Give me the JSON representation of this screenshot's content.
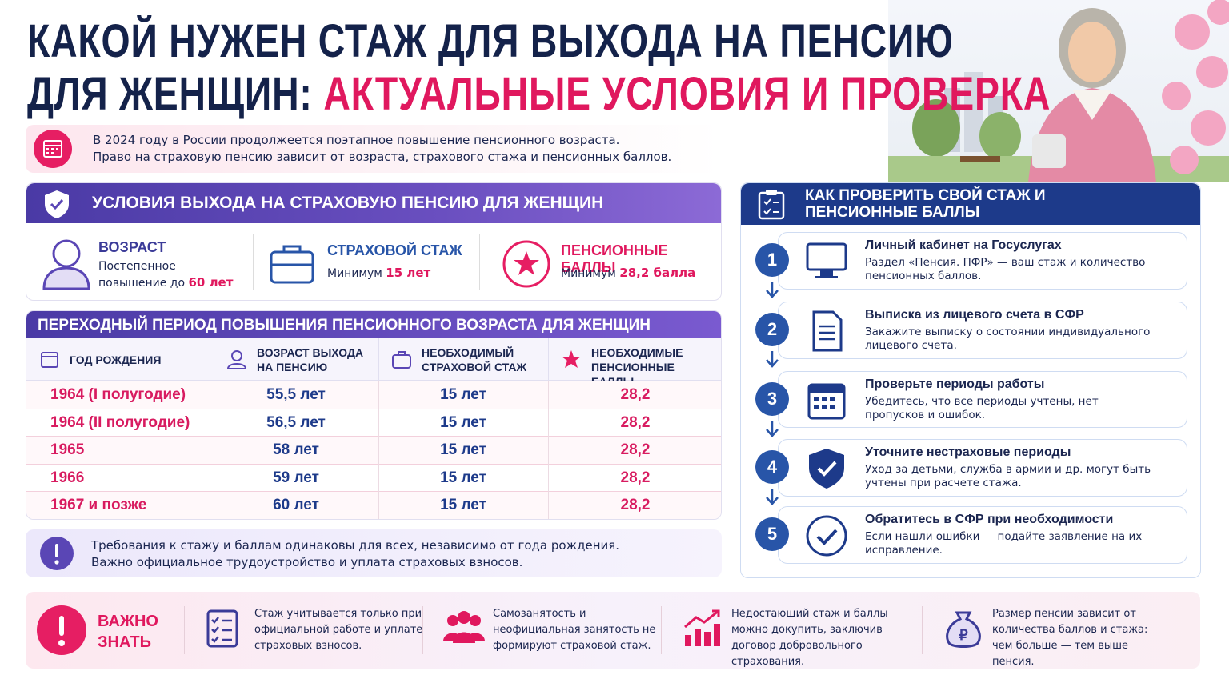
{
  "header": {
    "title_line1": "КАКОЙ НУЖЕН СТАЖ ДЛЯ ВЫХОДА НА ПЕНСИЮ",
    "title_line2_dark": "ДЛЯ ЖЕНЩИН:",
    "title_line2_accent": "АКТУАЛЬНЫЕ УСЛОВИЯ И ПРОВЕРКА"
  },
  "intro": [
    "В 2024 году в России продолжеется поэтапное повышение пенсионного возраста.",
    "Право на страховую пенсию зависит от возраста, страхового стажа и пенсионных баллов."
  ],
  "conditions": {
    "title": "УСЛОВИЯ ВЫХОДА НА СТРАХОВУЮ ПЕНСИЮ ДЛЯ ЖЕНЩИН",
    "items": [
      {
        "label": "ВОЗРАСТ",
        "text": "Постепенное повышение до",
        "accent": "60 лет"
      },
      {
        "label": "СТРАХОВОЙ СТАЖ",
        "text": "Минимум",
        "accent": "15 лет"
      },
      {
        "label": "ПЕНСИОННЫЕ БАЛЛЫ",
        "text": "Минимум",
        "accent": "28,2 балла"
      }
    ]
  },
  "table": {
    "title": "ПЕРЕХОДНЫЙ ПЕРИОД ПОВЫШЕНИЯ ПЕНСИОННОГО ВОЗРАСТА ДЛЯ ЖЕНЩИН",
    "headers": [
      "ГОД РОЖДЕНИЯ",
      "ВОЗРАСТ ВЫХОДА НА ПЕНСИЮ",
      "НЕОБХОДИМЫЙ СТРАХОВОЙ СТАЖ",
      "НЕОБХОДИМЫЕ ПЕНСИОННЫЕ БАЛЛЫ"
    ],
    "rows": [
      [
        "1964 (I полугодие)",
        "55,5 лет",
        "15 лет",
        "28,2"
      ],
      [
        "1964 (II полугодие)",
        "56,5 лет",
        "15 лет",
        "28,2"
      ],
      [
        "1965",
        "58 лет",
        "15 лет",
        "28,2"
      ],
      [
        "1966",
        "59 лет",
        "15 лет",
        "28,2"
      ],
      [
        "1967 и позже",
        "60 лет",
        "15 лет",
        "28,2"
      ]
    ]
  },
  "note": [
    "Требования к стажу и баллам одинаковы для всех, независимо от года рождения.",
    "Важно официальное трудоустройство и уплата страховых взносов."
  ],
  "check": {
    "title": "КАК ПРОВЕРИТЬ СВОЙ СТАЖ И ПЕНСИОННЫЕ БАЛЛЫ",
    "steps": [
      {
        "num": "1",
        "title": "Личный кабинет на Госуслугах",
        "text": "Раздел «Пенсия. ПФР» — ваш стаж и количество пенсионных баллов."
      },
      {
        "num": "2",
        "title": "Выписка из лицевого счета в СФР",
        "text": "Закажите выписку о состоянии индивидуального лицевого счета."
      },
      {
        "num": "3",
        "title": "Проверьте периоды работы",
        "text": "Убедитесь, что все периоды учтены, нет пропусков и ошибок."
      },
      {
        "num": "4",
        "title": "Уточните нестраховые периоды",
        "text": "Уход за детьми, служба в армии и др. могут быть учтены при расчете стажа."
      },
      {
        "num": "5",
        "title": "Обратитесь в СФР при необходимости",
        "text": "Если нашли ошибки — подайте заявление на их исправление."
      }
    ]
  },
  "important": {
    "label": "ВАЖНО ЗНАТЬ",
    "items": [
      "Стаж учитывается только при официальной работе и уплате страховых взносов.",
      "Самозанятость и неофициальная занятость не формируют страховой стаж.",
      "Недостающий стаж и баллы можно докупить, заключив договор добровольного страхования.",
      "Размер пенсии зависит от количества баллов и стажа: чем больше — тем выше пенсия."
    ]
  }
}
